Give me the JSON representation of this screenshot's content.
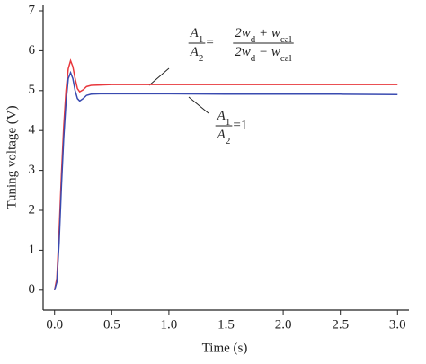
{
  "chart_data": {
    "type": "line",
    "x_label": "Time (s)",
    "y_label": "Tuning voltage (V)",
    "x": [
      0,
      0.02,
      0.04,
      0.06,
      0.08,
      0.1,
      0.12,
      0.14,
      0.16,
      0.18,
      0.2,
      0.22,
      0.25,
      0.28,
      0.32,
      0.4,
      0.5,
      1,
      1.5,
      2,
      2.5,
      3
    ],
    "series": [
      {
        "color": "#e8383d",
        "values": [
          0,
          0.3,
          1.5,
          2.9,
          4.1,
          5.0,
          5.55,
          5.75,
          5.6,
          5.3,
          5.05,
          4.97,
          5.02,
          5.1,
          5.13,
          5.14,
          5.15,
          5.15,
          5.15,
          5.15,
          5.15,
          5.15
        ]
      },
      {
        "color": "#3a4bb0",
        "values": [
          0,
          0.2,
          1.2,
          2.6,
          3.8,
          4.7,
          5.3,
          5.45,
          5.3,
          5.0,
          4.8,
          4.74,
          4.8,
          4.88,
          4.91,
          4.92,
          4.92,
          4.92,
          4.91,
          4.91,
          4.91,
          4.9
        ]
      }
    ],
    "xlim": [
      -0.1,
      3.1
    ],
    "ylim": [
      -0.5,
      7
    ],
    "xticks": [
      {
        "value": 0,
        "label": "0.0"
      },
      0.5,
      {
        "value": 1,
        "label": "1.0"
      },
      1.5,
      {
        "value": 2,
        "label": "2.0"
      },
      2.5,
      {
        "value": 3,
        "label": "3.0"
      }
    ],
    "yticks": [
      0,
      1,
      2,
      3,
      4,
      5,
      6,
      7
    ],
    "annotations": [
      {
        "lhs_numerator": [
          "A",
          "1"
        ],
        "lhs_denominator": [
          "A",
          "2"
        ],
        "relation": "=",
        "rhs_numerator": [
          "2w",
          "d",
          " + w",
          "cal"
        ],
        "rhs_denominator": [
          "2w",
          "d",
          " − w",
          "cal"
        ]
      },
      {
        "lhs_numerator": [
          "A",
          "1"
        ],
        "lhs_denominator": [
          "A",
          "2"
        ],
        "relation": "=1"
      }
    ]
  }
}
